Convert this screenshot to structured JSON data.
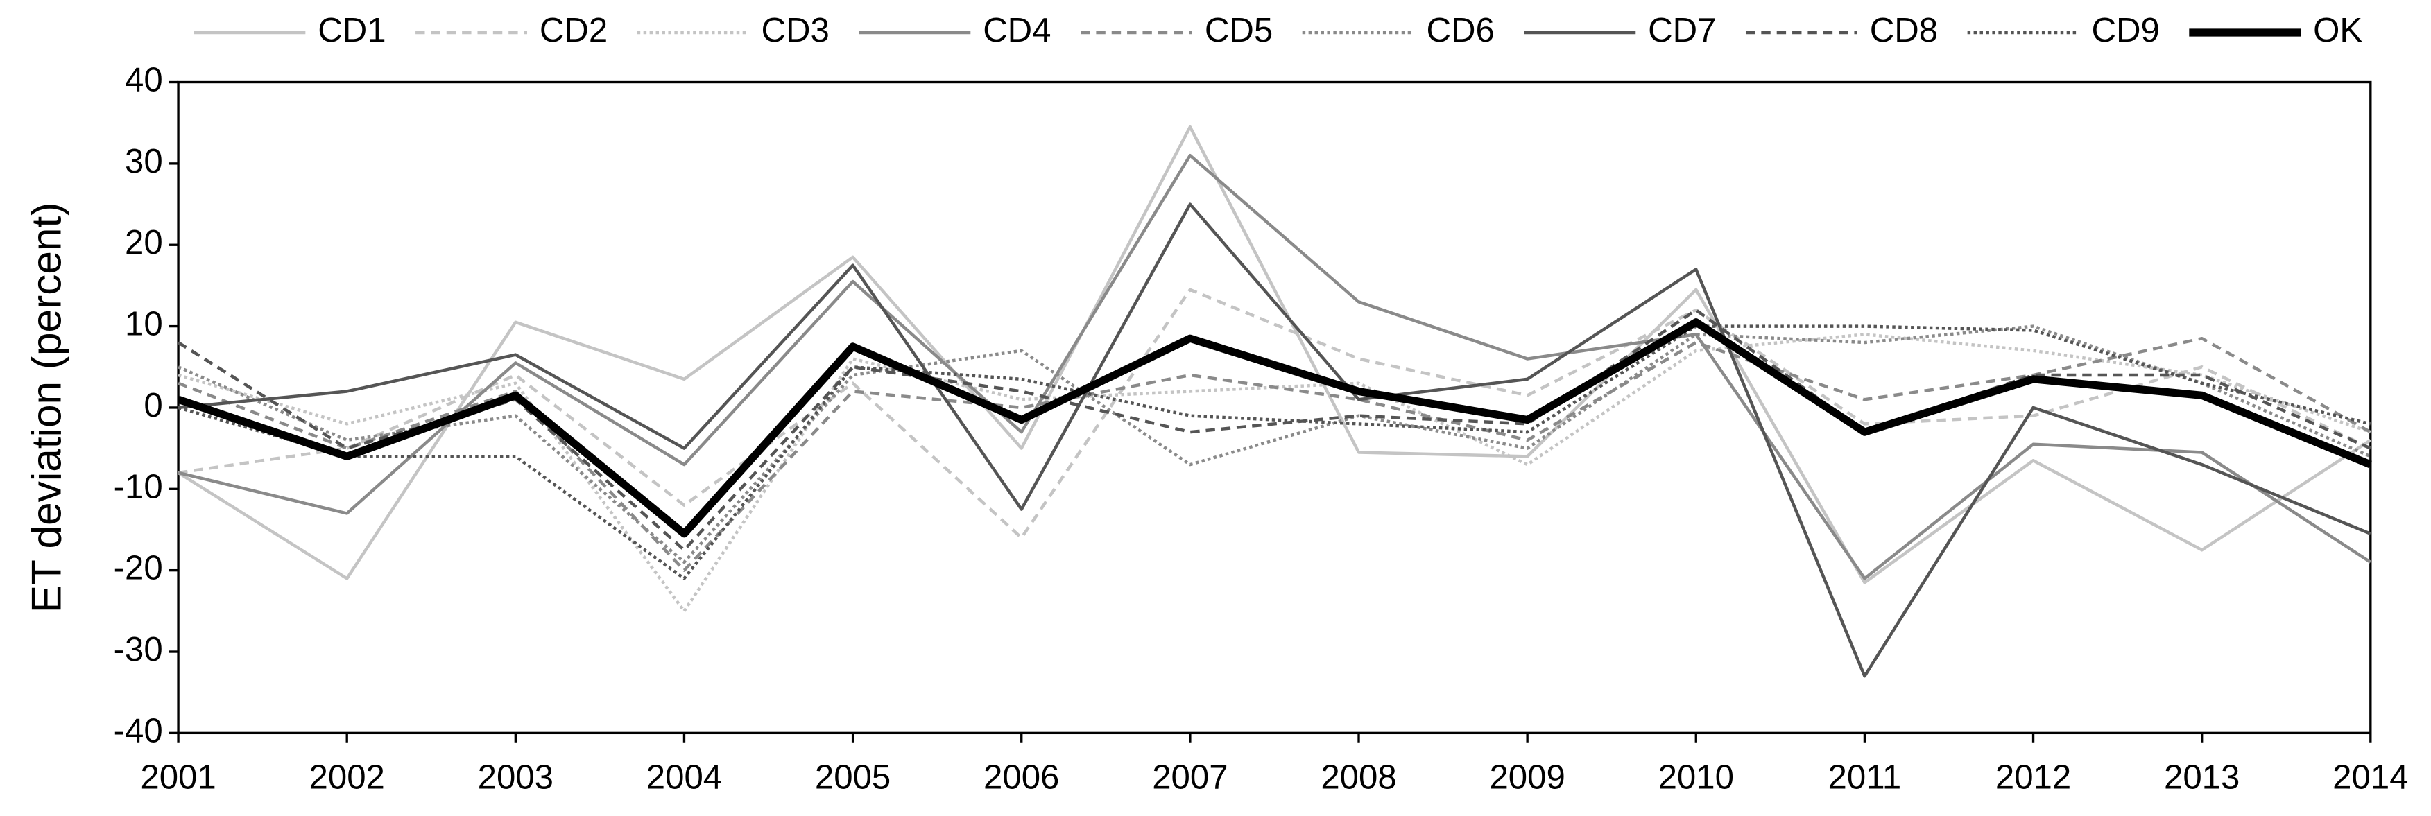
{
  "chart_data": {
    "type": "line",
    "y_label": "ET deviation (percent)",
    "x": [
      2001,
      2002,
      2003,
      2004,
      2005,
      2006,
      2007,
      2008,
      2009,
      2010,
      2011,
      2012,
      2013,
      2014
    ],
    "xlim": [
      2001,
      2014
    ],
    "xticks": [
      2001,
      2002,
      2003,
      2004,
      2005,
      2006,
      2007,
      2008,
      2009,
      2010,
      2011,
      2012,
      2013,
      2014
    ],
    "ylim": [
      -40,
      40
    ],
    "yticks": [
      -40,
      -30,
      -20,
      -10,
      0,
      10,
      20,
      30,
      40
    ],
    "grid": false,
    "legend": "top",
    "series": [
      {
        "name": "CD1",
        "color": "#c4c4c4",
        "dash": "solid",
        "width": 2,
        "values": [
          -8,
          -21,
          10.5,
          3.5,
          18.5,
          -5,
          34.5,
          -5.5,
          -6,
          14.5,
          -21.5,
          -6.5,
          -17.5,
          -4
        ]
      },
      {
        "name": "CD2",
        "color": "#c4c4c4",
        "dash": "dashed",
        "width": 2,
        "values": [
          -8,
          -5,
          4,
          -12,
          3,
          -16,
          14.5,
          6,
          1.5,
          12,
          -2,
          -1,
          5,
          -5
        ]
      },
      {
        "name": "CD3",
        "color": "#c4c4c4",
        "dash": "dotted",
        "width": 2,
        "values": [
          4,
          -2,
          3,
          -25,
          6,
          1,
          2,
          3,
          -7,
          7,
          9,
          7,
          4,
          -3
        ]
      },
      {
        "name": "CD4",
        "color": "#8a8a8a",
        "dash": "solid",
        "width": 2,
        "values": [
          -8,
          -13,
          5.5,
          -7,
          15.5,
          -3,
          31,
          13,
          6,
          9,
          -21,
          -4.5,
          -5.5,
          -19
        ]
      },
      {
        "name": "CD5",
        "color": "#8a8a8a",
        "dash": "dashed",
        "width": 2,
        "values": [
          3,
          -5,
          2,
          -20,
          2,
          0,
          4,
          1,
          -4,
          8,
          1,
          4,
          8.5,
          -3
        ]
      },
      {
        "name": "CD6",
        "color": "#8a8a8a",
        "dash": "dotted",
        "width": 2,
        "values": [
          5,
          -4,
          -1,
          -19,
          4,
          7,
          -7,
          -1,
          -5,
          9,
          8,
          10,
          3,
          -6
        ]
      },
      {
        "name": "CD7",
        "color": "#555555",
        "dash": "solid",
        "width": 2,
        "values": [
          0,
          2,
          6.5,
          -5,
          17.5,
          -12.5,
          25,
          1,
          3.5,
          17,
          -33,
          0,
          -7,
          -15.5
        ]
      },
      {
        "name": "CD8",
        "color": "#555555",
        "dash": "dashed",
        "width": 2,
        "values": [
          8,
          -5,
          1,
          -17.5,
          5,
          2,
          -3,
          -1,
          -2,
          12,
          -3,
          4,
          4,
          -5
        ]
      },
      {
        "name": "CD9",
        "color": "#555555",
        "dash": "dotted",
        "width": 2,
        "values": [
          0,
          -6,
          -6,
          -21,
          5,
          3.5,
          -1,
          -2,
          -3,
          10,
          10,
          9.5,
          3,
          -2
        ]
      },
      {
        "name": "OK",
        "color": "#000000",
        "dash": "solid",
        "width": 5,
        "values": [
          1,
          -6,
          1.5,
          -15.5,
          7.5,
          -1.5,
          8.5,
          2,
          -1.5,
          10.5,
          -3,
          3.5,
          1.5,
          -7
        ]
      }
    ]
  }
}
